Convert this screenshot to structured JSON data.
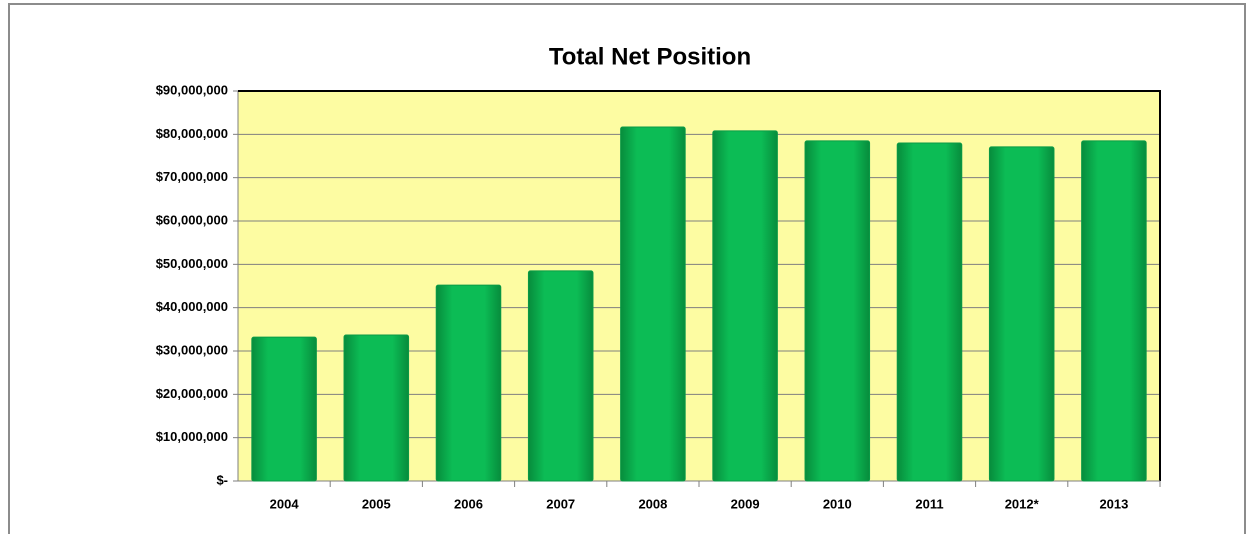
{
  "chart_data": {
    "type": "bar",
    "title": "Total Net Position",
    "categories": [
      "2004",
      "2005",
      "2006",
      "2007",
      "2008",
      "2009",
      "2010",
      "2011",
      "2012*",
      "2013"
    ],
    "values": [
      33200000,
      33700000,
      45200000,
      48500000,
      81700000,
      80800000,
      78500000,
      78000000,
      77100000,
      78500000
    ],
    "color": "#0cbc55",
    "ylim": [
      0,
      90000000
    ],
    "yticks": [
      {
        "value": 0,
        "label": "$-"
      },
      {
        "value": 10000000,
        "label": "$10,000,000"
      },
      {
        "value": 20000000,
        "label": "$20,000,000"
      },
      {
        "value": 30000000,
        "label": "$30,000,000"
      },
      {
        "value": 40000000,
        "label": "$40,000,000"
      },
      {
        "value": 50000000,
        "label": "$50,000,000"
      },
      {
        "value": 60000000,
        "label": "$60,000,000"
      },
      {
        "value": 70000000,
        "label": "$70,000,000"
      },
      {
        "value": 80000000,
        "label": "$80,000,000"
      },
      {
        "value": 90000000,
        "label": "$90,000,000"
      }
    ],
    "grid": true,
    "plot_background": "#fdfca2"
  }
}
